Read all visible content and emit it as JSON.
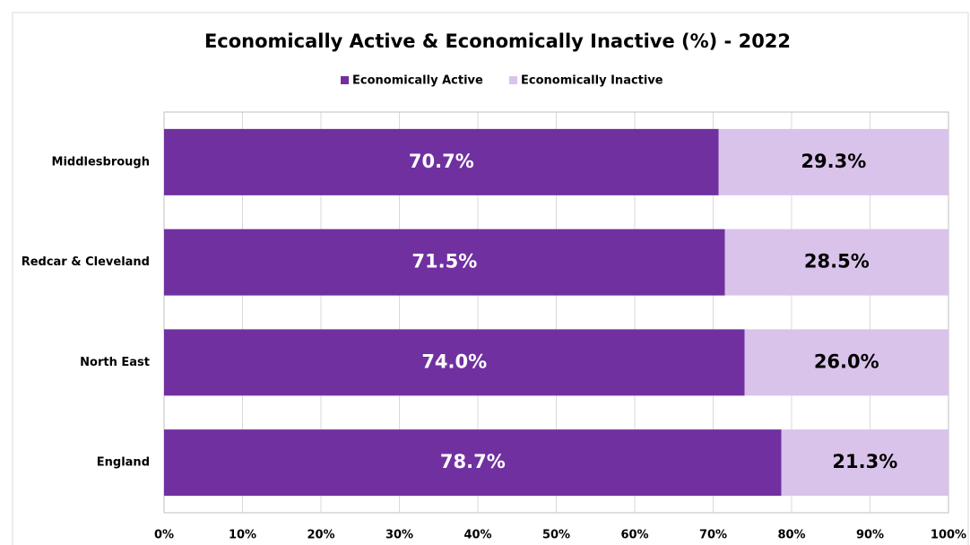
{
  "chart_data": {
    "type": "stacked-bar-horizontal",
    "title": "Economically Active & Economically Inactive (%) - 2022",
    "categories": [
      "Middlesbrough",
      "Redcar & Cleveland",
      "North East",
      "England"
    ],
    "series": [
      {
        "name": "Economically Active",
        "color": "#7030a0",
        "values": [
          70.7,
          71.5,
          74.0,
          78.7
        ],
        "value_labels": [
          "70.7%",
          "71.5%",
          "74.0%",
          "78.7%"
        ]
      },
      {
        "name": "Economically Inactive",
        "color": "#d9c3ea",
        "values": [
          29.3,
          28.5,
          26.0,
          21.3
        ],
        "value_labels": [
          "29.3%",
          "28.5%",
          "26.0%",
          "21.3%"
        ]
      }
    ],
    "xlim": [
      0,
      100
    ],
    "xticks": [
      {
        "value": 0,
        "label": "0%"
      },
      {
        "value": 10,
        "label": "10%"
      },
      {
        "value": 20,
        "label": "20%"
      },
      {
        "value": 30,
        "label": "30%"
      },
      {
        "value": 40,
        "label": "40%"
      },
      {
        "value": 50,
        "label": "50%"
      },
      {
        "value": 60,
        "label": "60%"
      },
      {
        "value": 70,
        "label": "70%"
      },
      {
        "value": 80,
        "label": "80%"
      },
      {
        "value": 90,
        "label": "90%"
      },
      {
        "value": 100,
        "label": "100%"
      }
    ],
    "grid": true,
    "legend": "top"
  }
}
